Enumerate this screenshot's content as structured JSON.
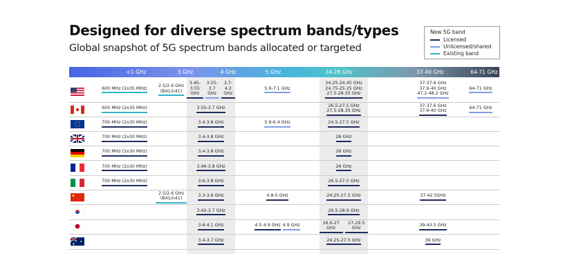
{
  "header": {
    "title": "Designed for diverse spectrum bands/types",
    "subtitle": "Global snapshot of 5G spectrum bands allocated or targeted"
  },
  "legend": {
    "title": "New 5G band",
    "items": [
      {
        "label": "Licensed",
        "color": "#1f2b5c"
      },
      {
        "label": "Unlicensed/shared",
        "color": "#7f9de6"
      },
      {
        "label": "Existing band",
        "color": "#2fb3c6"
      }
    ]
  },
  "bands": [
    "<1 GHz",
    "3 GHz",
    "4 GHz",
    "5 GHz",
    "24-28 GHz",
    "37-40 GHz",
    "64-71 GHz"
  ],
  "rows": [
    {
      "cells": [
        [
          {
            "text": "600 MHz (2x35 MHz)",
            "color": "#2fb3c6"
          }
        ],
        [
          {
            "text": "2.5/2.6 GHz\n(B41/n41)",
            "color": "#2fb3c6"
          }
        ],
        [
          {
            "text": "3.45-\n3.55 GHz",
            "color": "#1f2b5c"
          },
          {
            "text": "3.55-\n3.7 GHz",
            "color": "#7f9de6"
          },
          {
            "text": "3.7-\n4.2 GHz",
            "color": "#1f2b5c"
          }
        ],
        [
          {
            "text": "5.9-7.1 GHz",
            "color": "#7f9de6"
          }
        ],
        [
          {
            "text": "24.25-24.45 GHz\n24.75-25.25 GHz\n27.5-28.35 GHz",
            "color": "#1f2b5c"
          }
        ],
        [
          {
            "text": "37-37.6 GHz\n37.6-40 GHz\n47.2-48.2 GHz",
            "color": "#7f9de6"
          }
        ],
        [
          {
            "text": "64-71 GHz",
            "color": "#7f9de6"
          }
        ]
      ]
    },
    {
      "cells": [
        [
          {
            "text": "600 MHz (2x35 MHz)",
            "color": "#2fb3c6"
          }
        ],
        [],
        [
          {
            "text": "3.55-3.7 GHz",
            "color": "#1f2b5c"
          }
        ],
        [],
        [
          {
            "text": "26.5-27.5 GHz\n27.5-28.35 GHz",
            "color": "#1f2b5c"
          }
        ],
        [
          {
            "text": "37-37.6 GHz\n37.6-40 GHz",
            "color": "#1f2b5c"
          }
        ],
        [
          {
            "text": "64-71 GHz",
            "color": "#7f9de6"
          }
        ]
      ]
    },
    {
      "cells": [
        [
          {
            "text": "700 MHz (2x30 MHz)",
            "color": "#1f2b5c"
          }
        ],
        [],
        [
          {
            "text": "3.4-3.8 GHz",
            "color": "#1f2b5c"
          }
        ],
        [
          {
            "text": "5.9-6.4 GHz",
            "color": "#7f9de6"
          }
        ],
        [
          {
            "text": "24.5-27.5 GHz",
            "color": "#1f2b5c"
          }
        ],
        [],
        []
      ]
    },
    {
      "cells": [
        [
          {
            "text": "700 MHz (2x30 MHz)",
            "color": "#1f2b5c"
          }
        ],
        [],
        [
          {
            "text": "3.4-3.8 GHz",
            "color": "#1f2b5c"
          }
        ],
        [],
        [
          {
            "text": "26 GHz",
            "color": "#1f2b5c"
          }
        ],
        [],
        []
      ]
    },
    {
      "cells": [
        [
          {
            "text": "700 MHz (2x30 MHz)",
            "color": "#1f2b5c"
          }
        ],
        [],
        [
          {
            "text": "3.4-3.8 GHz",
            "color": "#1f2b5c"
          }
        ],
        [],
        [
          {
            "text": "26 GHz",
            "color": "#1f2b5c"
          }
        ],
        [],
        []
      ]
    },
    {
      "cells": [
        [
          {
            "text": "700 MHz (2x30 MHz)",
            "color": "#1f2b5c"
          }
        ],
        [],
        [
          {
            "text": "3.46-3.8 GHz",
            "color": "#1f2b5c"
          }
        ],
        [],
        [
          {
            "text": "26 GHz",
            "color": "#1f2b5c"
          }
        ],
        [],
        []
      ]
    },
    {
      "cells": [
        [
          {
            "text": "700 MHz (2x30 MHz)",
            "color": "#1f2b5c"
          }
        ],
        [],
        [
          {
            "text": "3.6-3.8 GHz",
            "color": "#1f2b5c"
          }
        ],
        [],
        [
          {
            "text": "26.5-27.5 GHz",
            "color": "#1f2b5c"
          }
        ],
        [],
        []
      ]
    },
    {
      "cells": [
        [],
        [
          {
            "text": "2.5/2.6 GHz (B41/n41)",
            "color": "#2fb3c6"
          }
        ],
        [
          {
            "text": "3.3-3.6 GHz",
            "color": "#1f2b5c"
          }
        ],
        [
          {
            "text": "4.8-5 GHz",
            "color": "#1f2b5c"
          }
        ],
        [
          {
            "text": "24.25-27.5 GHz",
            "color": "#1f2b5c"
          }
        ],
        [
          {
            "text": "37-42.5GHz",
            "color": "#1f2b5c"
          }
        ],
        []
      ]
    },
    {
      "cells": [
        [],
        [],
        [
          {
            "text": "3.42-3.7 GHz",
            "color": "#1f2b5c"
          }
        ],
        [],
        [
          {
            "text": "26.5-28.9 GHz",
            "color": "#1f2b5c"
          }
        ],
        [],
        []
      ]
    },
    {
      "cells": [
        [],
        [],
        [
          {
            "text": "3.6-4.1 GHz",
            "color": "#1f2b5c"
          }
        ],
        [
          {
            "text": "4.5-4.9 GHz",
            "color": "#1f2b5c"
          },
          {
            "text": "4.9 GHz",
            "color": "#7f9de6"
          }
        ],
        [
          {
            "text": "26.6-27 GHz",
            "color": "#1f2b5c"
          },
          {
            "text": "27-29.5 GHz",
            "color": "#1f2b5c"
          }
        ],
        [
          {
            "text": "39-43.5 GHz",
            "color": "#1f2b5c"
          }
        ],
        []
      ]
    },
    {
      "cells": [
        [],
        [],
        [
          {
            "text": "3.4-3.7 GHz",
            "color": "#1f2b5c"
          }
        ],
        [],
        [
          {
            "text": "24.25-27.5 GHz",
            "color": "#1f2b5c"
          }
        ],
        [
          {
            "text": "39 GHz",
            "color": "#1f2b5c"
          }
        ],
        []
      ]
    }
  ]
}
